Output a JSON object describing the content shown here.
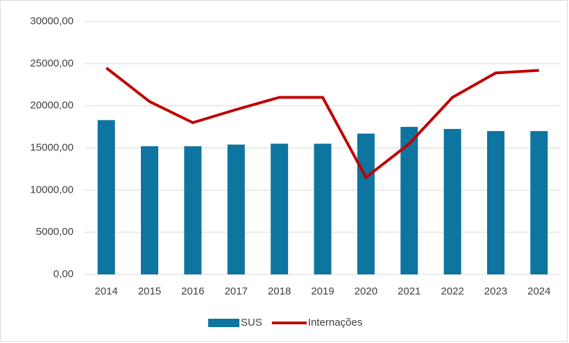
{
  "chart_data": {
    "type": "bar",
    "categories": [
      "2014",
      "2015",
      "2016",
      "2017",
      "2018",
      "2019",
      "2020",
      "2021",
      "2022",
      "2023",
      "2024"
    ],
    "series": [
      {
        "name": "SUS",
        "type": "bar",
        "color": "#0e74a0",
        "values": [
          18300,
          15200,
          15200,
          15400,
          15500,
          15500,
          16700,
          17500,
          17250,
          17000,
          17000
        ]
      },
      {
        "name": "Internações",
        "type": "line",
        "color": "#c00000",
        "values": [
          24500,
          20500,
          18000,
          19550,
          21000,
          21000,
          11500,
          15500,
          21000,
          23900,
          24200
        ]
      }
    ],
    "ylim": [
      0,
      30000
    ],
    "yticks": [
      {
        "value": 0,
        "label": "0,00"
      },
      {
        "value": 5000,
        "label": "5000,00"
      },
      {
        "value": 10000,
        "label": "10000,00"
      },
      {
        "value": 15000,
        "label": "15000,00"
      },
      {
        "value": 20000,
        "label": "20000,00"
      },
      {
        "value": 25000,
        "label": "25000,00"
      },
      {
        "value": 30000,
        "label": "30000,00"
      }
    ],
    "grid": true,
    "legend": "bottom"
  }
}
